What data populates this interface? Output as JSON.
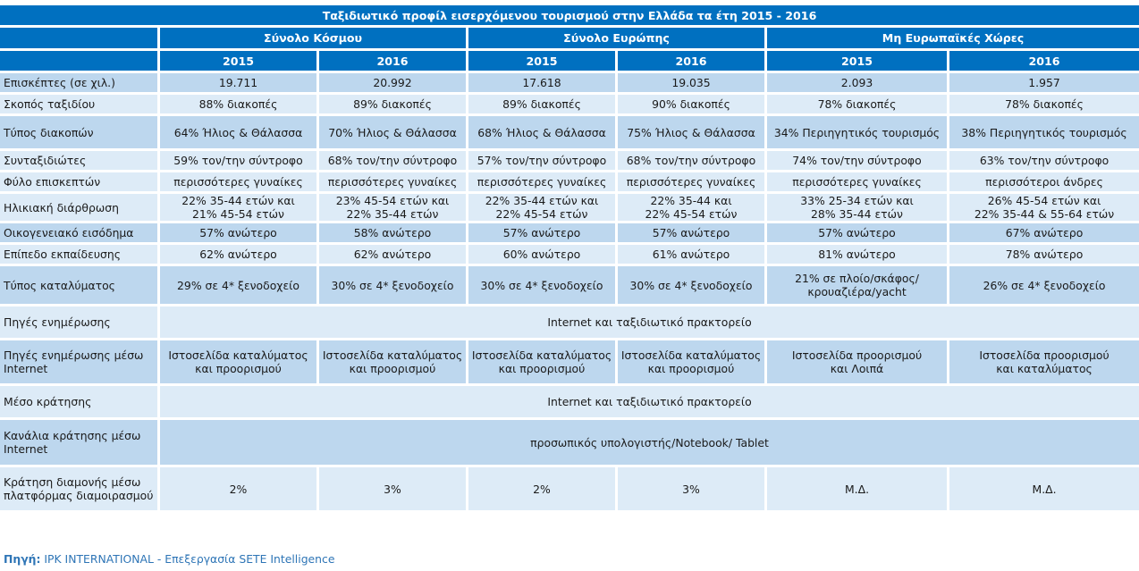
{
  "table": {
    "title": "Ταξιδιωτικό προφίλ εισερχόμενου τουρισμού στην Ελλάδα τα έτη 2015 - 2016",
    "regions": [
      "Σύνολο Κόσμου",
      "Σύνολο Ευρώπης",
      "Μη Ευρωπαϊκές Χώρες"
    ],
    "years": [
      "2015",
      "2016",
      "2015",
      "2016",
      "2015",
      "2016"
    ],
    "rows": [
      {
        "label": "Επισκέπτες (σε χιλ.)",
        "values": [
          "19.711",
          "20.992",
          "17.618",
          "19.035",
          "2.093",
          "1.957"
        ]
      },
      {
        "label": "Σκοπός ταξιδίου",
        "values": [
          "88% διακοπές",
          "89% διακοπές",
          "89% διακοπές",
          "90% διακοπές",
          "78% διακοπές",
          "78% διακοπές"
        ]
      },
      {
        "label": "Τύπος διακοπών",
        "values": [
          "64% Ήλιος & Θάλασσα",
          "70% Ήλιος & Θάλασσα",
          "68% Ήλιος & Θάλασσα",
          "75% Ήλιος & Θάλασσα",
          "34% Περιηγητικός τουρισμός",
          "38% Περιηγητικός τουρισμός"
        ]
      },
      {
        "label": "Συνταξιδιώτες",
        "values": [
          "59% τον/την σύντροφο",
          "68% τον/την σύντροφο",
          "57% τον/την σύντροφο",
          "68% τον/την σύντροφο",
          "74% τον/την σύντροφο",
          "63% τον/την σύντροφο"
        ]
      },
      {
        "label": "Φύλο επισκεπτών",
        "values": [
          "περισσότερες γυναίκες",
          "περισσότερες γυναίκες",
          "περισσότερες γυναίκες",
          "περισσότερες γυναίκες",
          "περισσότερες γυναίκες",
          "περισσότεροι άνδρες"
        ]
      },
      {
        "label": "Ηλικιακή διάρθρωση",
        "values": [
          [
            "22% 35-44 ετών και",
            "21% 45-54 ετών"
          ],
          [
            "23% 45-54 ετών και",
            "22% 35-44 ετών"
          ],
          [
            "22% 35-44 ετών και",
            "22% 45-54 ετών"
          ],
          [
            "22% 35-44 και",
            "22% 45-54 ετών"
          ],
          [
            "33% 25-34 ετών και",
            "28% 35-44 ετών"
          ],
          [
            "26% 45-54 ετών και",
            "22% 35-44 & 55-64 ετών"
          ]
        ]
      },
      {
        "label": "Οικογενειακό εισόδημα",
        "values": [
          "57% ανώτερο",
          "58% ανώτερο",
          "57% ανώτερο",
          "57% ανώτερο",
          "57% ανώτερο",
          "67% ανώτερο"
        ]
      },
      {
        "label": "Επίπεδο εκπαίδευσης",
        "values": [
          "62% ανώτερο",
          "62% ανώτερο",
          "60% ανώτερο",
          "61% ανώτερο",
          "81% ανώτερο",
          "78% ανώτερο"
        ]
      },
      {
        "label": "Τύπος καταλύματος",
        "values": [
          [
            "29% σε 4* ξενοδοχείο"
          ],
          [
            "30% σε 4* ξενοδοχείο"
          ],
          [
            "30% σε 4* ξενοδοχείο"
          ],
          [
            "30% σε 4* ξενοδοχείο"
          ],
          [
            "21% σε πλοίο/σκάφος/",
            "κρουαζιέρα/yacht"
          ],
          [
            "26% σε 4* ξενοδοχείο"
          ]
        ]
      },
      {
        "label": "Πηγές ενημέρωσης",
        "merged": "Internet και ταξιδιωτικό πρακτορείο"
      },
      {
        "label": "Πηγές ενημέρωσης μέσω Internet",
        "values": [
          [
            "Ιστοσελίδα καταλύματος",
            "και προορισμού"
          ],
          [
            "Ιστοσελίδα καταλύματος",
            "και προορισμού"
          ],
          [
            "Ιστοσελίδα καταλύματος",
            "και προορισμού"
          ],
          [
            "Ιστοσελίδα καταλύματος",
            "και προορισμού"
          ],
          [
            "Ιστοσελίδα προορισμού",
            "και Λοιπά"
          ],
          [
            "Ιστοσελίδα προορισμού",
            "και καταλύματος"
          ]
        ]
      },
      {
        "label": "Μέσο κράτησης",
        "merged": "Internet και ταξιδιωτικό πρακτορείο"
      },
      {
        "label": "Κανάλια κράτησης μέσω Internet",
        "merged": "προσωπικός υπολογιστής/Notebook/ Tablet"
      },
      {
        "label": "Κράτηση διαμονής μέσω πλατφόρμας διαμοιρασμού",
        "values": [
          "2%",
          "3%",
          "2%",
          "3%",
          "Μ.Δ.",
          "Μ.Δ."
        ]
      }
    ]
  },
  "source": {
    "prefix": "Πηγή:",
    "text": " IPK INTERNATIONAL - Επεξεργασία SETE Intelligence"
  },
  "colors": {
    "header_blue": "#0070c0",
    "row_dark": "#bdd7ee",
    "row_light": "#ddebf7",
    "source_text": "#2e75b6"
  }
}
